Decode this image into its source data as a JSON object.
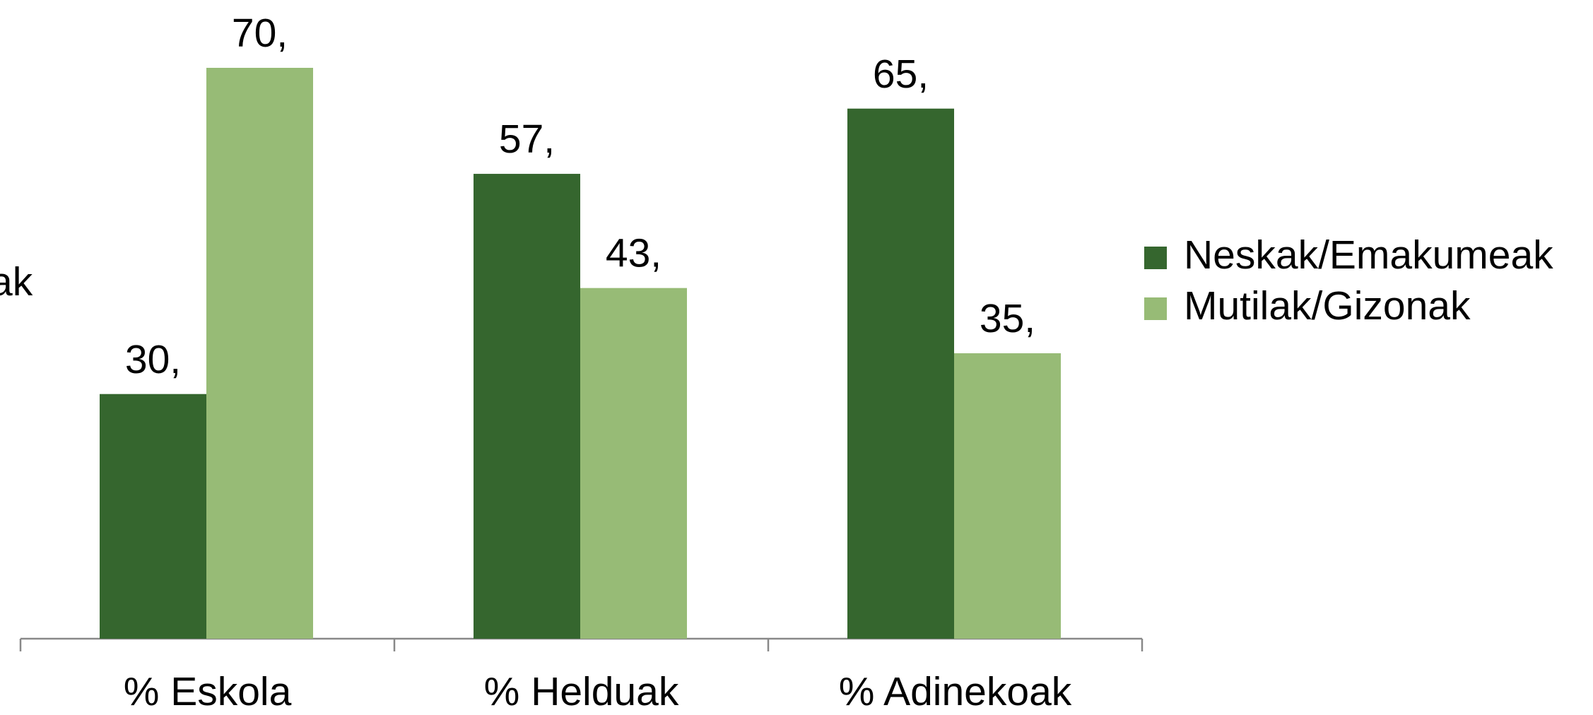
{
  "chart_data": {
    "type": "bar",
    "ylabel": "ak",
    "categories": [
      "% Eskola",
      "% Helduak",
      "% Adinekoak"
    ],
    "series": [
      {
        "name": "Neskak/Emakumeak",
        "color": "#35662e",
        "values": [
          30,
          57,
          65
        ],
        "value_labels": [
          "30,",
          "57,",
          "65,"
        ]
      },
      {
        "name": "Mutilak/Gizonak",
        "color": "#97bb76",
        "values": [
          70,
          43,
          35
        ],
        "value_labels": [
          "70,",
          "43,",
          "35,"
        ]
      }
    ],
    "ylim": [
      0,
      70
    ],
    "legend": "right"
  }
}
